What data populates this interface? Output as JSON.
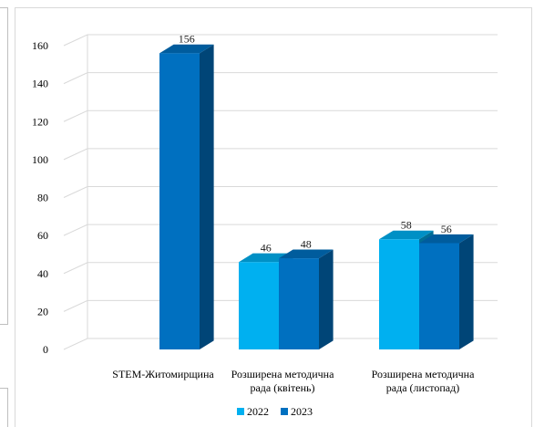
{
  "chart_data": {
    "type": "bar",
    "style": "3d-clustered-column",
    "categories": [
      [
        "STEM-Житомирщина"
      ],
      [
        "Розширена методична",
        "рада (квітень)"
      ],
      [
        "Розширена методична",
        "рада (листопад)"
      ]
    ],
    "series": [
      {
        "name": "2022",
        "color": "#00b0f0",
        "values": [
          null,
          46,
          58
        ],
        "labels": [
          "",
          "46",
          "58"
        ]
      },
      {
        "name": "2023",
        "color": "#0070c0",
        "values": [
          156,
          48,
          56
        ],
        "labels": [
          "156",
          "48",
          "56"
        ]
      }
    ],
    "ylim": [
      0,
      160
    ],
    "yticks": [
      0,
      20,
      40,
      60,
      80,
      100,
      120,
      140,
      160
    ],
    "ytick_labels": [
      "0",
      "20",
      "40",
      "60",
      "80",
      "100",
      "120",
      "140",
      "160"
    ],
    "grid": true,
    "legend_position": "bottom",
    "title": "",
    "xlabel": "",
    "ylabel": ""
  }
}
